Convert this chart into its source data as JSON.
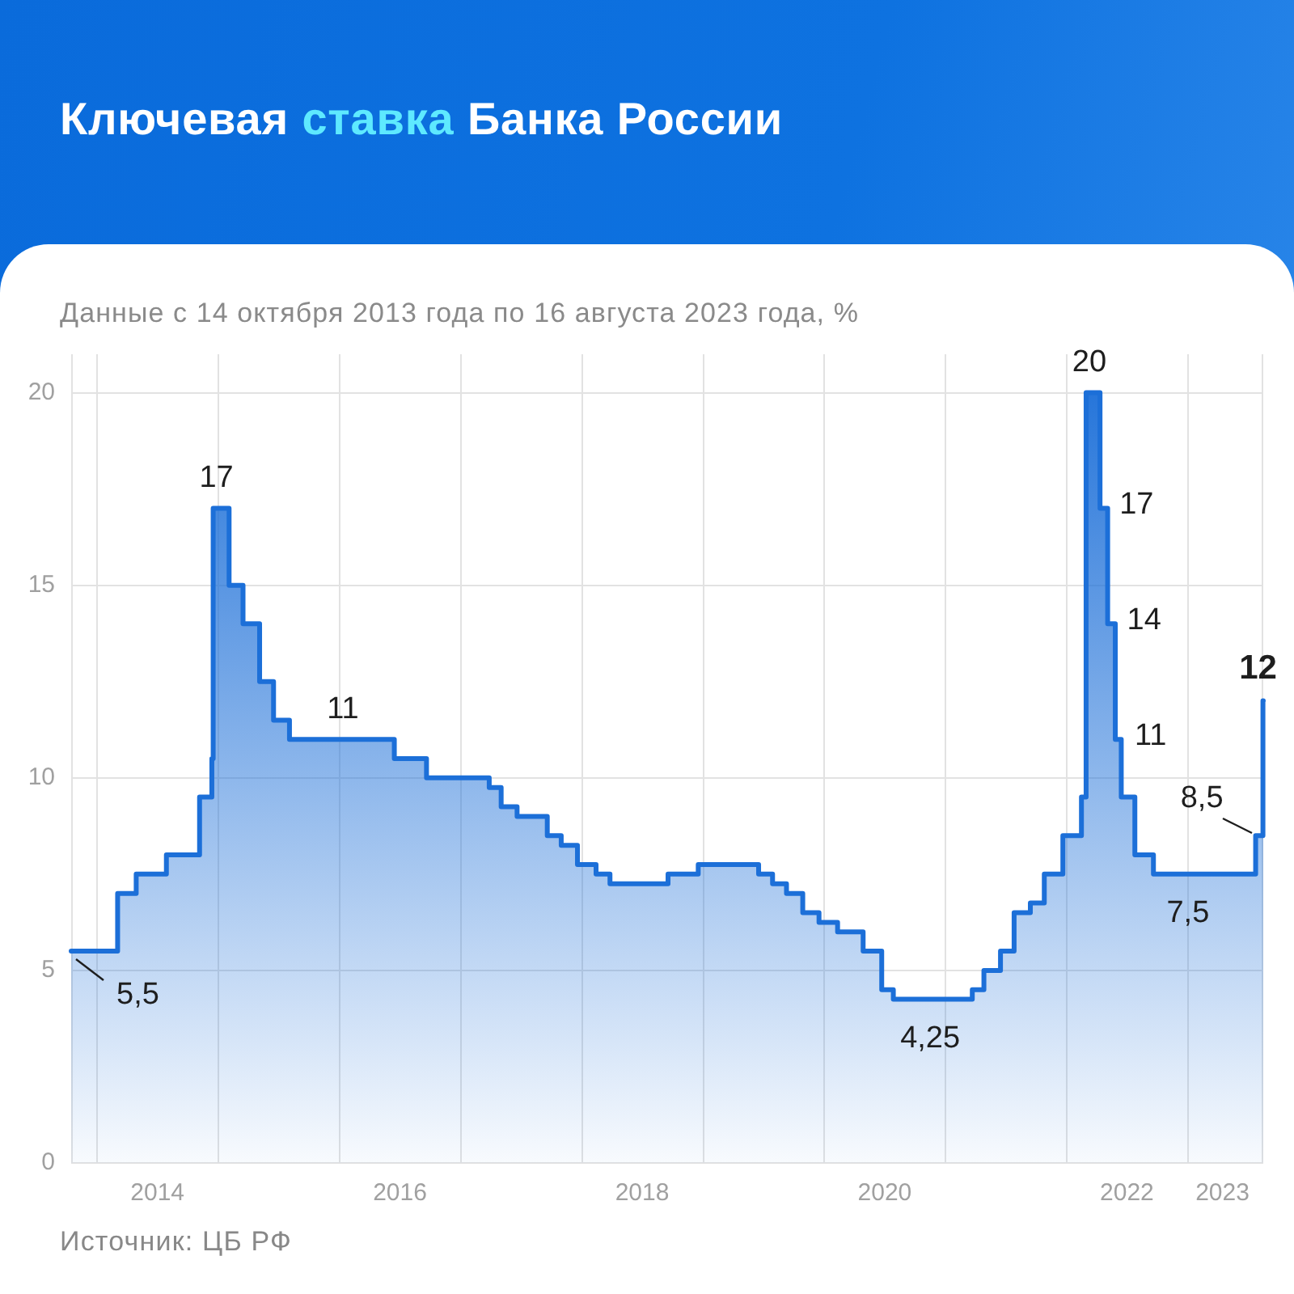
{
  "chart_data": {
    "type": "area",
    "title": "Ключевая ставка Банка России",
    "subtitle": "Данные с 14 октября 2013 года по 16 августа 2023 года, %",
    "annotations": [
      {
        "text": "5,5",
        "x": "2013-10-14",
        "y": 5.5
      },
      {
        "text": "17",
        "x": "2014-12-16",
        "y": 17
      },
      {
        "text": "11",
        "x": "2016-01-01",
        "y": 11
      },
      {
        "text": "4,25",
        "x": "2020-11-15",
        "y": 4.25
      },
      {
        "text": "20",
        "x": "2022-02-28",
        "y": 20
      },
      {
        "text": "17",
        "x": "2022-04-11",
        "y": 17
      },
      {
        "text": "14",
        "x": "2022-05-04",
        "y": 14
      },
      {
        "text": "11",
        "x": "2022-05-27",
        "y": 11
      },
      {
        "text": "7,5",
        "x": "2023-01-01",
        "y": 7.5
      },
      {
        "text": "8,5",
        "x": "2023-07-24",
        "y": 8.5
      },
      {
        "text": "12",
        "x": "2023-08-15",
        "y": 12
      },
      "Источник: ЦБ РФ"
    ],
    "x": [
      "2013-10-14",
      "2014-03-03",
      "2014-03-03",
      "2014-04-28",
      "2014-04-28",
      "2014-07-28",
      "2014-07-28",
      "2014-11-05",
      "2014-11-05",
      "2014-12-12",
      "2014-12-12",
      "2014-12-16",
      "2014-12-16",
      "2015-02-02",
      "2015-02-02",
      "2015-03-16",
      "2015-03-16",
      "2015-05-05",
      "2015-05-05",
      "2015-06-16",
      "2015-06-16",
      "2015-08-03",
      "2015-08-03",
      "2016-06-14",
      "2016-06-14",
      "2016-09-19",
      "2016-09-19",
      "2017-03-27",
      "2017-03-27",
      "2017-05-02",
      "2017-05-02",
      "2017-06-19",
      "2017-06-19",
      "2017-09-18",
      "2017-09-18",
      "2017-10-30",
      "2017-10-30",
      "2017-12-18",
      "2017-12-18",
      "2018-02-12",
      "2018-02-12",
      "2018-03-26",
      "2018-03-26",
      "2018-09-17",
      "2018-09-17",
      "2018-12-17",
      "2018-12-17",
      "2019-06-17",
      "2019-06-17",
      "2019-07-29",
      "2019-07-29",
      "2019-09-09",
      "2019-09-09",
      "2019-10-28",
      "2019-10-28",
      "2019-12-16",
      "2019-12-16",
      "2020-02-10",
      "2020-02-10",
      "2020-04-27",
      "2020-04-27",
      "2020-06-22",
      "2020-06-22",
      "2020-07-27",
      "2020-07-27",
      "2021-03-22",
      "2021-03-22",
      "2021-04-26",
      "2021-04-26",
      "2021-06-15",
      "2021-06-15",
      "2021-07-26",
      "2021-07-26",
      "2021-09-13",
      "2021-09-13",
      "2021-10-25",
      "2021-10-25",
      "2021-12-20",
      "2021-12-20",
      "2022-02-14",
      "2022-02-14",
      "2022-02-28",
      "2022-02-28",
      "2022-04-11",
      "2022-04-11",
      "2022-05-04",
      "2022-05-04",
      "2022-05-27",
      "2022-05-27",
      "2022-06-14",
      "2022-06-14",
      "2022-07-25",
      "2022-07-25",
      "2022-09-19",
      "2022-09-19",
      "2023-07-24",
      "2023-07-24",
      "2023-08-15",
      "2023-08-15",
      "2023-08-16"
    ],
    "values": [
      5.5,
      5.5,
      7,
      7,
      7.5,
      7.5,
      8,
      8,
      9.5,
      9.5,
      10.5,
      10.5,
      17,
      17,
      15,
      15,
      14,
      14,
      12.5,
      12.5,
      11.5,
      11.5,
      11,
      11,
      10.5,
      10.5,
      10,
      10,
      9.75,
      9.75,
      9.25,
      9.25,
      9,
      9,
      8.5,
      8.5,
      8.25,
      8.25,
      7.75,
      7.75,
      7.5,
      7.5,
      7.25,
      7.25,
      7.5,
      7.5,
      7.75,
      7.75,
      7.5,
      7.5,
      7.25,
      7.25,
      7,
      7,
      6.5,
      6.5,
      6.25,
      6.25,
      6,
      6,
      5.5,
      5.5,
      4.5,
      4.5,
      4.25,
      4.25,
      4.5,
      4.5,
      5,
      5,
      5.5,
      5.5,
      6.5,
      6.5,
      6.75,
      6.75,
      7.5,
      7.5,
      8.5,
      8.5,
      9.5,
      9.5,
      20,
      20,
      17,
      17,
      14,
      14,
      11,
      11,
      9.5,
      9.5,
      8,
      8,
      7.5,
      7.5,
      8.5,
      8.5,
      12,
      12
    ],
    "color": "#1c6fd8",
    "xlim": [
      "2013-10-14",
      "2023-08-16"
    ],
    "xticks": [
      {
        "value": "2014-01-01",
        "label": null
      },
      {
        "value": "2014-07-01",
        "label": "2014"
      },
      {
        "value": "2015-01-01",
        "label": null
      },
      {
        "value": "2016-01-01",
        "label": null
      },
      {
        "value": "2016-07-01",
        "label": "2016"
      },
      {
        "value": "2017-01-01",
        "label": null
      },
      {
        "value": "2018-01-01",
        "label": null
      },
      {
        "value": "2018-07-01",
        "label": "2018"
      },
      {
        "value": "2019-01-01",
        "label": null
      },
      {
        "value": "2020-01-01",
        "label": null
      },
      {
        "value": "2020-07-01",
        "label": "2020"
      },
      {
        "value": "2021-01-01",
        "label": null
      },
      {
        "value": "2022-01-01",
        "label": null
      },
      {
        "value": "2022-07-01",
        "label": "2022"
      },
      {
        "value": "2023-01-01",
        "label": null
      },
      {
        "value": "2023-04-15",
        "label": "2023"
      }
    ],
    "ylim": [
      0,
      21
    ],
    "yticks": [
      0,
      5,
      10,
      15,
      20
    ],
    "grid": true
  }
}
